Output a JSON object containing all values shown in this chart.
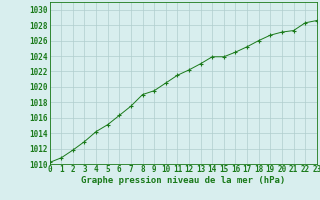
{
  "x": [
    0,
    1,
    2,
    3,
    4,
    5,
    6,
    7,
    8,
    9,
    10,
    11,
    12,
    13,
    14,
    15,
    16,
    17,
    18,
    19,
    20,
    21,
    22,
    23
  ],
  "y": [
    1010.2,
    1010.8,
    1011.8,
    1012.9,
    1014.2,
    1015.1,
    1016.3,
    1017.5,
    1019.0,
    1019.5,
    1020.5,
    1021.5,
    1022.2,
    1023.0,
    1023.9,
    1023.9,
    1024.5,
    1025.2,
    1026.0,
    1026.7,
    1027.1,
    1027.3,
    1028.3,
    1028.6
  ],
  "line_color": "#1a7a1a",
  "marker_color": "#1a7a1a",
  "bg_color": "#d8eeee",
  "grid_color": "#b0cece",
  "xlabel": "Graphe pression niveau de la mer (hPa)",
  "ylim": [
    1010,
    1031
  ],
  "yticks": [
    1010,
    1012,
    1014,
    1016,
    1018,
    1020,
    1022,
    1024,
    1026,
    1028,
    1030
  ],
  "xlim": [
    0,
    23
  ],
  "xticks": [
    0,
    1,
    2,
    3,
    4,
    5,
    6,
    7,
    8,
    9,
    10,
    11,
    12,
    13,
    14,
    15,
    16,
    17,
    18,
    19,
    20,
    21,
    22,
    23
  ],
  "xtick_labels": [
    "0",
    "1",
    "2",
    "3",
    "4",
    "5",
    "6",
    "7",
    "8",
    "9",
    "10",
    "11",
    "12",
    "13",
    "14",
    "15",
    "16",
    "17",
    "18",
    "19",
    "20",
    "21",
    "22",
    "23"
  ],
  "tick_color": "#1a7a1a",
  "label_fontsize": 6.5,
  "tick_fontsize": 5.5
}
